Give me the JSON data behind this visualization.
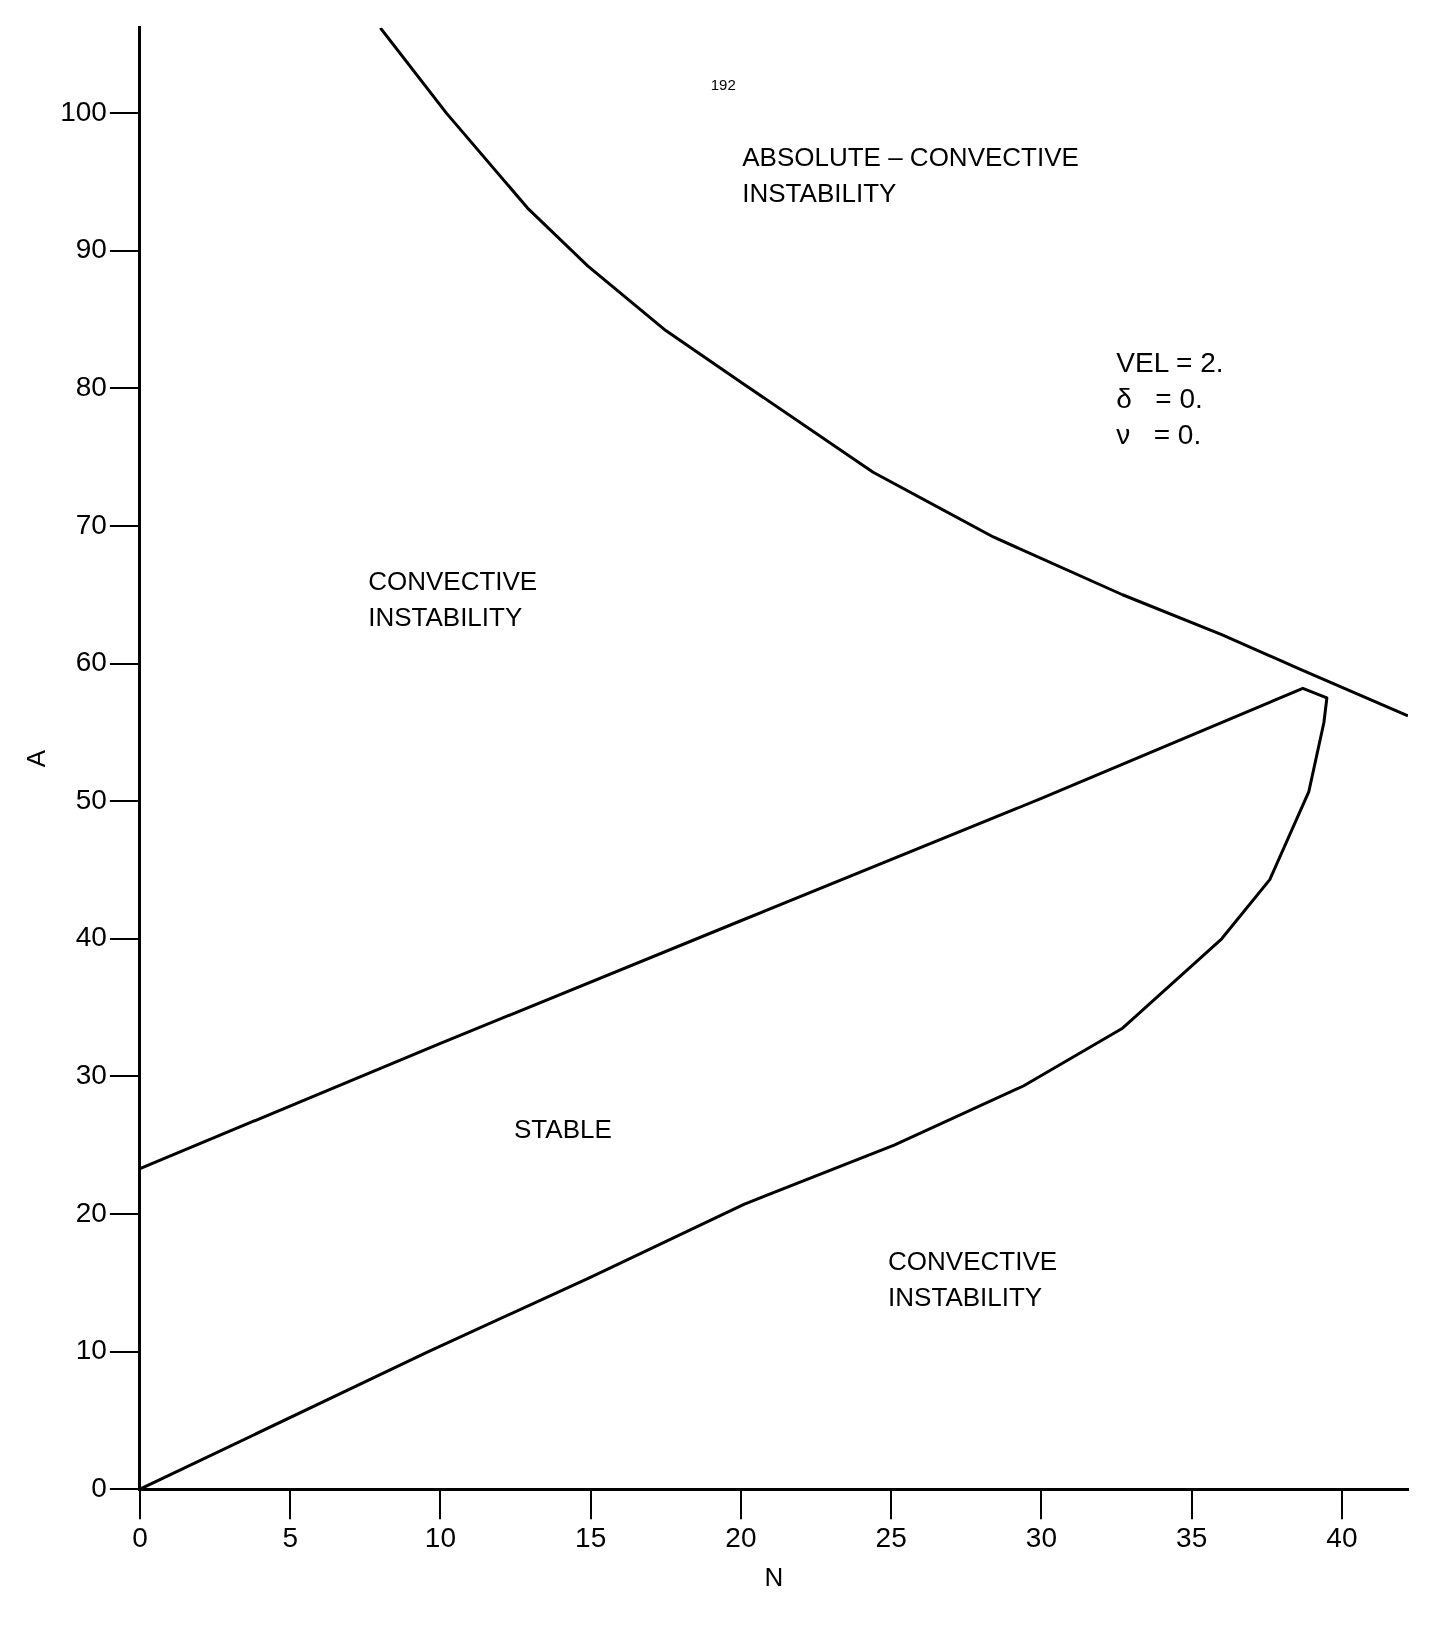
{
  "chart_data": {
    "type": "line",
    "xlabel": "N",
    "ylabel": "A",
    "xlim": [
      0,
      42.2
    ],
    "xticks": [
      0,
      5,
      10,
      15,
      20,
      25,
      30,
      35,
      40
    ],
    "ylim": [
      0,
      106.2
    ],
    "yticks": [
      0,
      10,
      20,
      30,
      40,
      50,
      60,
      70,
      80,
      90,
      100
    ],
    "grid": false,
    "legend": false,
    "marker": "none",
    "line_style": "solid",
    "series": [
      {
        "color": "#000000",
        "x": [
          8.0,
          10.2,
          12.9,
          14.9,
          17.5,
          20.1,
          24.4,
          28.4,
          32.7,
          36.0,
          38.6,
          42.2
        ],
        "values": [
          106.2,
          100,
          93.1,
          88.9,
          84.2,
          80.3,
          73.9,
          69.2,
          65.0,
          62.1,
          59.6,
          56.2
        ]
      },
      {
        "color": "#000000",
        "x": [
          0,
          10,
          20.1,
          30,
          38.7,
          39.5,
          39.4,
          38.9,
          37.6,
          36.0,
          32.7,
          29.4,
          25.1,
          20.1,
          14.9,
          9.6,
          0
        ],
        "values": [
          23.3,
          32.4,
          41.4,
          50.2,
          58.2,
          57.5,
          55.7,
          50.7,
          44.3,
          40.0,
          33.5,
          29.3,
          25.0,
          20.7,
          15.3,
          10.0,
          0
        ]
      }
    ],
    "annotations": [
      "192",
      "VEL = 2.\nδ   = 0.\nν   = 0.",
      "ABSOLUTE – CONVECTIVE\nINSTABILITY",
      "CONVECTIVE\nINSTABILITY",
      "STABLE",
      "CONVECTIVE\nINSTABILITY"
    ]
  }
}
